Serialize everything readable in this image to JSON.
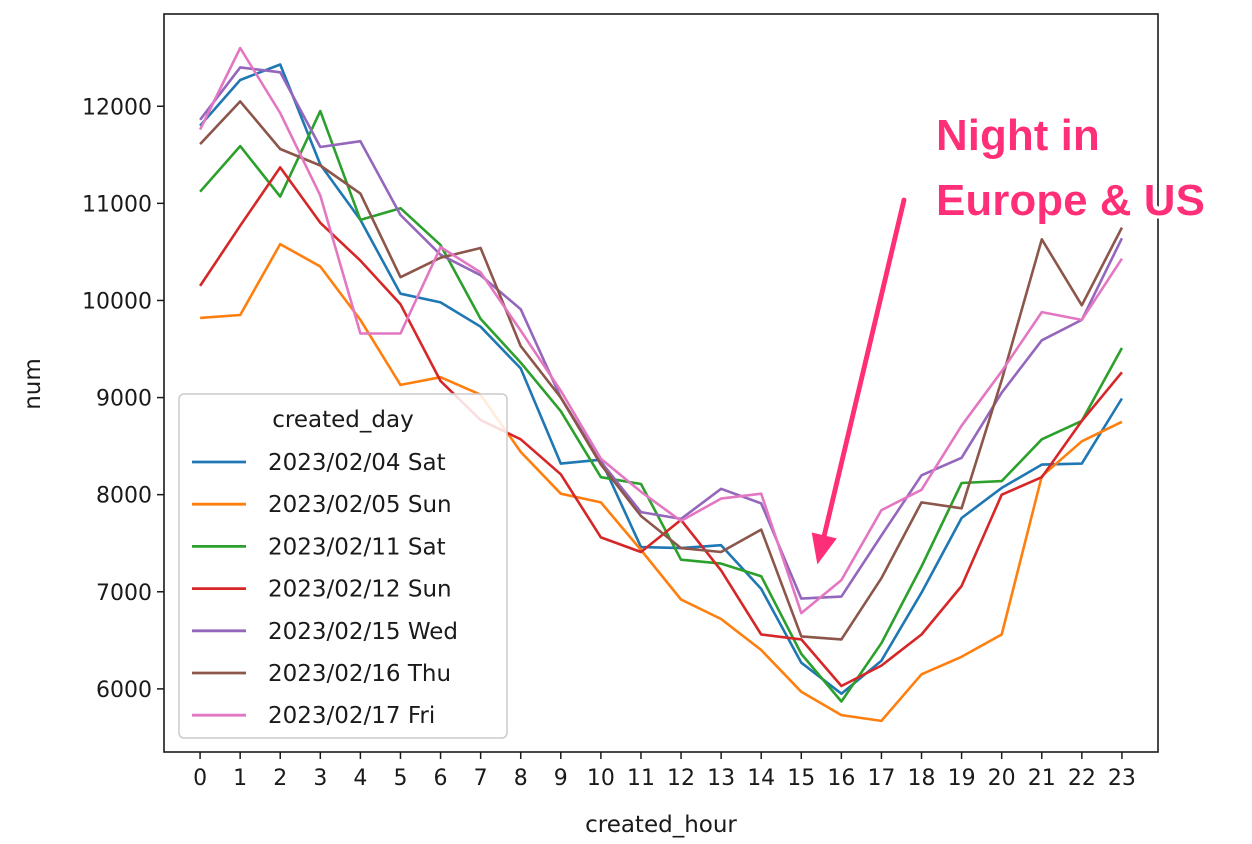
{
  "chart_data": {
    "type": "line",
    "xlabel": "created_hour",
    "ylabel": "num",
    "x": [
      0,
      1,
      2,
      3,
      4,
      5,
      6,
      7,
      8,
      9,
      10,
      11,
      12,
      13,
      14,
      15,
      16,
      17,
      18,
      19,
      20,
      21,
      22,
      23
    ],
    "xticks": [
      "0",
      "1",
      "2",
      "3",
      "4",
      "5",
      "6",
      "7",
      "8",
      "9",
      "10",
      "11",
      "12",
      "13",
      "14",
      "15",
      "16",
      "17",
      "18",
      "19",
      "20",
      "21",
      "22",
      "23"
    ],
    "yticks": [
      6000,
      7000,
      8000,
      9000,
      10000,
      11000,
      12000
    ],
    "xlim": [
      -0.9,
      23.9
    ],
    "ylim": [
      5350,
      12950
    ],
    "legend": {
      "title": "created_day",
      "placement": "lower-left"
    },
    "series": [
      {
        "name": "2023/02/04 Sat",
        "color": "#1f77b4",
        "values": [
          11800,
          12270,
          12430,
          11400,
          10830,
          10070,
          9980,
          9730,
          9300,
          8320,
          8360,
          7460,
          7450,
          7480,
          7030,
          6270,
          5950,
          6290,
          6990,
          7760,
          8070,
          8310,
          8320,
          8990
        ]
      },
      {
        "name": "2023/02/05 Sun",
        "color": "#ff7f0e",
        "values": [
          9820,
          9850,
          10580,
          10350,
          9800,
          9130,
          9210,
          9030,
          8440,
          8010,
          7920,
          7430,
          6920,
          6720,
          6400,
          5970,
          5730,
          5670,
          6150,
          6330,
          6560,
          8190,
          8550,
          8750
        ]
      },
      {
        "name": "2023/02/11 Sat",
        "color": "#2ca02c",
        "values": [
          11120,
          11590,
          11070,
          11950,
          10830,
          10950,
          10570,
          9810,
          9360,
          8860,
          8180,
          8110,
          7330,
          7290,
          7160,
          6360,
          5870,
          6470,
          7260,
          8120,
          8140,
          8570,
          8760,
          9510
        ]
      },
      {
        "name": "2023/02/12 Sun",
        "color": "#d62728",
        "values": [
          10150,
          10770,
          11370,
          10800,
          10410,
          9960,
          9170,
          8770,
          8570,
          8210,
          7560,
          7410,
          7740,
          7220,
          6560,
          6510,
          6030,
          6240,
          6560,
          7060,
          8000,
          8180,
          8760,
          9260
        ]
      },
      {
        "name": "2023/02/15 Wed",
        "color": "#9467bd",
        "values": [
          11860,
          12400,
          12350,
          11580,
          11640,
          10880,
          10470,
          10260,
          9910,
          9000,
          8340,
          7820,
          7750,
          8060,
          7910,
          6930,
          6950,
          7580,
          8200,
          8380,
          9050,
          9590,
          9800,
          10640
        ]
      },
      {
        "name": "2023/02/16 Thu",
        "color": "#8c564b",
        "values": [
          11610,
          12050,
          11560,
          11390,
          11100,
          10240,
          10440,
          10540,
          9530,
          9000,
          8310,
          7780,
          7450,
          7410,
          7640,
          6540,
          6510,
          7140,
          7920,
          7860,
          9180,
          10630,
          9950,
          10750
        ]
      },
      {
        "name": "2023/02/17 Fri",
        "color": "#e377c2",
        "values": [
          11760,
          12600,
          11930,
          11080,
          9660,
          9660,
          10550,
          10290,
          9690,
          9070,
          8370,
          8030,
          7730,
          7960,
          8010,
          6780,
          7120,
          7840,
          8050,
          8710,
          9270,
          9880,
          9800,
          10430
        ]
      }
    ],
    "annotation": {
      "text_lines": [
        "Night in",
        "Europe & US"
      ],
      "color": "#ff2d78",
      "points_to_x": 15.4,
      "points_to_y": 7280
    }
  }
}
